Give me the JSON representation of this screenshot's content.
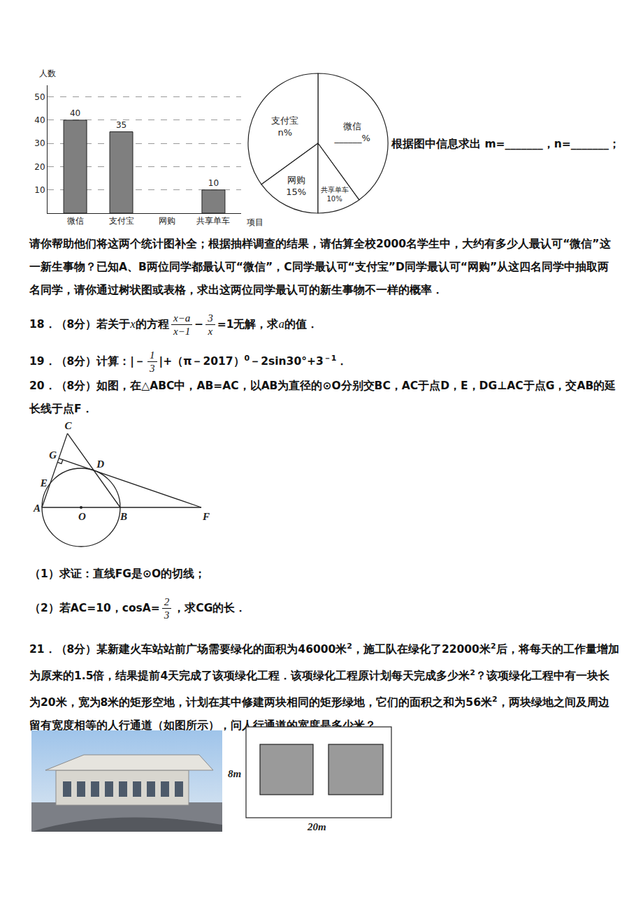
{
  "chart_data": [
    {
      "type": "bar",
      "y_label": "人数",
      "x_label": "项目",
      "categories": [
        "微信",
        "支付宝",
        "网购",
        "共享单车"
      ],
      "values": [
        40,
        35,
        null,
        10
      ],
      "ylim": [
        0,
        55
      ],
      "yticks": [
        10,
        20,
        30,
        40,
        50
      ],
      "grid": true,
      "data_labels": true,
      "color": "#7f7f7f"
    },
    {
      "type": "pie",
      "categories": [
        "微信",
        "支付宝",
        "网购",
        "共享单车"
      ],
      "values": [
        40,
        35,
        15,
        10
      ],
      "value_labels": [
        "______%",
        "n%",
        "15%",
        "10%"
      ],
      "color": "#ffffff"
    }
  ],
  "document": {
    "question_tail": "根据图中信息求出 m=_______，n=_______；",
    "paragraph": "请你帮助他们将这两个统计图补全；根据抽样调查的结果，请估算全校2000名学生中，大约有多少人最认可“微信”这一新生事物？已知A、B两位同学都最认可“微信”，C同学最认可“支付宝”D同学最认可“网购”从这四名同学中抽取两名同学，请你通过树状图或表格，求出这两位同学最认可的新生事物不一样的概率．",
    "problem18": [
      "18．（8分）若关于",
      {
        "i": "x"
      },
      "的方程",
      {
        "frac": [
          "x−a",
          "x−1"
        ]
      },
      "−",
      {
        "frac": [
          "3",
          "x"
        ]
      },
      "=1无解，求",
      {
        "i": "a"
      },
      "的值．"
    ],
    "problem19": [
      "19．（8分）计算：|－",
      {
        "frac": [
          "1",
          "3"
        ]
      },
      "|+（π－2017）",
      {
        "sup": "0"
      },
      "－2sin30°+3",
      {
        "sup": "－1"
      },
      "．"
    ],
    "problem20": {
      "text": [
        "20．（8分）如图，在△ABC中，AB=AC，以AB为直径的⊙O分别交BC，AC于点D，E，DG⊥AC于点G，交AB的延长线于点F．"
      ],
      "points": [
        "A",
        "O",
        "B",
        "F",
        "C",
        "G",
        "E",
        "D"
      ],
      "part1": [
        "（1）求证：直线FG是⊙O的切线；"
      ],
      "part2": [
        "（2）若AC=10，cosA=",
        {
          "frac": [
            "2",
            "3"
          ]
        },
        "，求CG的长．"
      ]
    },
    "problem21": {
      "text": [
        "21．（8分）某新建火车站站前广场需要绿化的面积为46000米",
        {
          "sup": "2"
        },
        "，施工队在绿化了22000米",
        {
          "sup": "2"
        },
        "后，将每天的工作量增加为原来的1.5倍，结果提前4天完成了该项绿化工程．该项绿化工程原计划每天完成多少米",
        {
          "sup": "2"
        },
        "？该项绿化工程中有一块长为20米，宽为8米的矩形空地，计划在其中修建两块相同的矩形绿地，它们的面积之和为56米",
        {
          "sup": "2"
        },
        "，两块绿地之间及周边留有宽度相等的人行通道（如图所示），问人行通道的宽度是多少米？"
      ],
      "height_label": "8m",
      "width_label": "20m"
    }
  }
}
